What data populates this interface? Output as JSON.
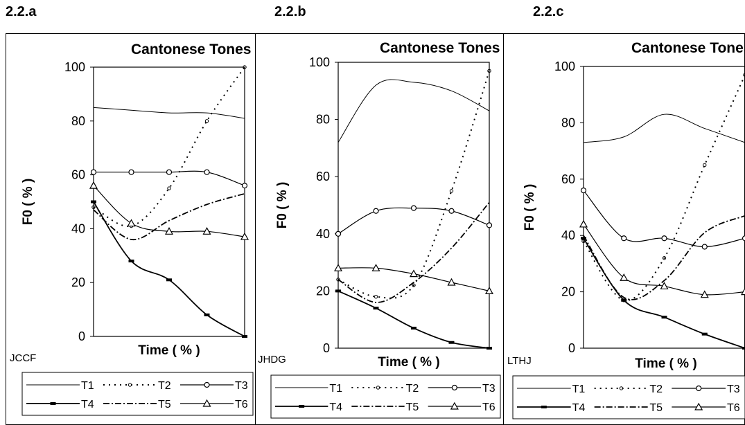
{
  "panel_labels": [
    "2.2.a",
    "2.2.b",
    "2.2.c"
  ],
  "legend_items": [
    "T1",
    "T2",
    "T3",
    "T4",
    "T5",
    "T6"
  ],
  "chart_data": [
    {
      "type": "line",
      "panel": "2.2.a",
      "speaker": "JCCF",
      "title": "Cantonese Tones",
      "xlabel": "Time ( % )",
      "ylabel": "F0 ( % )",
      "ylim": [
        0,
        100
      ],
      "yticks": [
        0,
        20,
        40,
        60,
        80,
        100
      ],
      "xlim": [
        0,
        100
      ],
      "x": [
        0,
        25,
        50,
        75,
        100
      ],
      "series": [
        {
          "name": "T1",
          "values": [
            85,
            84,
            83,
            83,
            81
          ]
        },
        {
          "name": "T2",
          "values": [
            48,
            41,
            55,
            80,
            100
          ]
        },
        {
          "name": "T3",
          "values": [
            61,
            61,
            61,
            61,
            56
          ]
        },
        {
          "name": "T4",
          "values": [
            50,
            28,
            21,
            8,
            0
          ]
        },
        {
          "name": "T5",
          "values": [
            47,
            36,
            43,
            49,
            53
          ]
        },
        {
          "name": "T6",
          "values": [
            56,
            42,
            39,
            39,
            37
          ]
        }
      ]
    },
    {
      "type": "line",
      "panel": "2.2.b",
      "speaker": "JHDG",
      "title": "Cantonese Tones",
      "xlabel": "Time ( % )",
      "ylabel": "F0 ( % )",
      "ylim": [
        0,
        100
      ],
      "yticks": [
        0,
        20,
        40,
        60,
        80,
        100
      ],
      "xlim": [
        0,
        100
      ],
      "x": [
        0,
        25,
        50,
        75,
        100
      ],
      "series": [
        {
          "name": "T1",
          "values": [
            72,
            92,
            93,
            90,
            83
          ]
        },
        {
          "name": "T2",
          "values": [
            24,
            18,
            22,
            55,
            97
          ]
        },
        {
          "name": "T3",
          "values": [
            40,
            48,
            49,
            48,
            43
          ]
        },
        {
          "name": "T4",
          "values": [
            20,
            14,
            7,
            2,
            0
          ]
        },
        {
          "name": "T5",
          "values": [
            24,
            16,
            23,
            35,
            51
          ]
        },
        {
          "name": "T6",
          "values": [
            28,
            28,
            26,
            23,
            20
          ]
        }
      ]
    },
    {
      "type": "line",
      "panel": "2.2.c",
      "speaker": "LTHJ",
      "title": "Cantonese Tones",
      "xlabel": "Time ( % )",
      "ylabel": "F0 ( % )",
      "ylim": [
        0,
        100
      ],
      "yticks": [
        0,
        20,
        40,
        60,
        80,
        100
      ],
      "xlim": [
        0,
        100
      ],
      "x": [
        0,
        25,
        50,
        75,
        100
      ],
      "series": [
        {
          "name": "T1",
          "values": [
            73,
            75,
            83,
            78,
            73
          ]
        },
        {
          "name": "T2",
          "values": [
            38,
            17,
            32,
            65,
            97
          ]
        },
        {
          "name": "T3",
          "values": [
            56,
            39,
            39,
            36,
            39
          ]
        },
        {
          "name": "T4",
          "values": [
            39,
            17,
            11,
            5,
            0
          ]
        },
        {
          "name": "T5",
          "values": [
            40,
            18,
            24,
            41,
            47
          ]
        },
        {
          "name": "T6",
          "values": [
            44,
            25,
            22,
            19,
            20
          ]
        }
      ]
    }
  ]
}
